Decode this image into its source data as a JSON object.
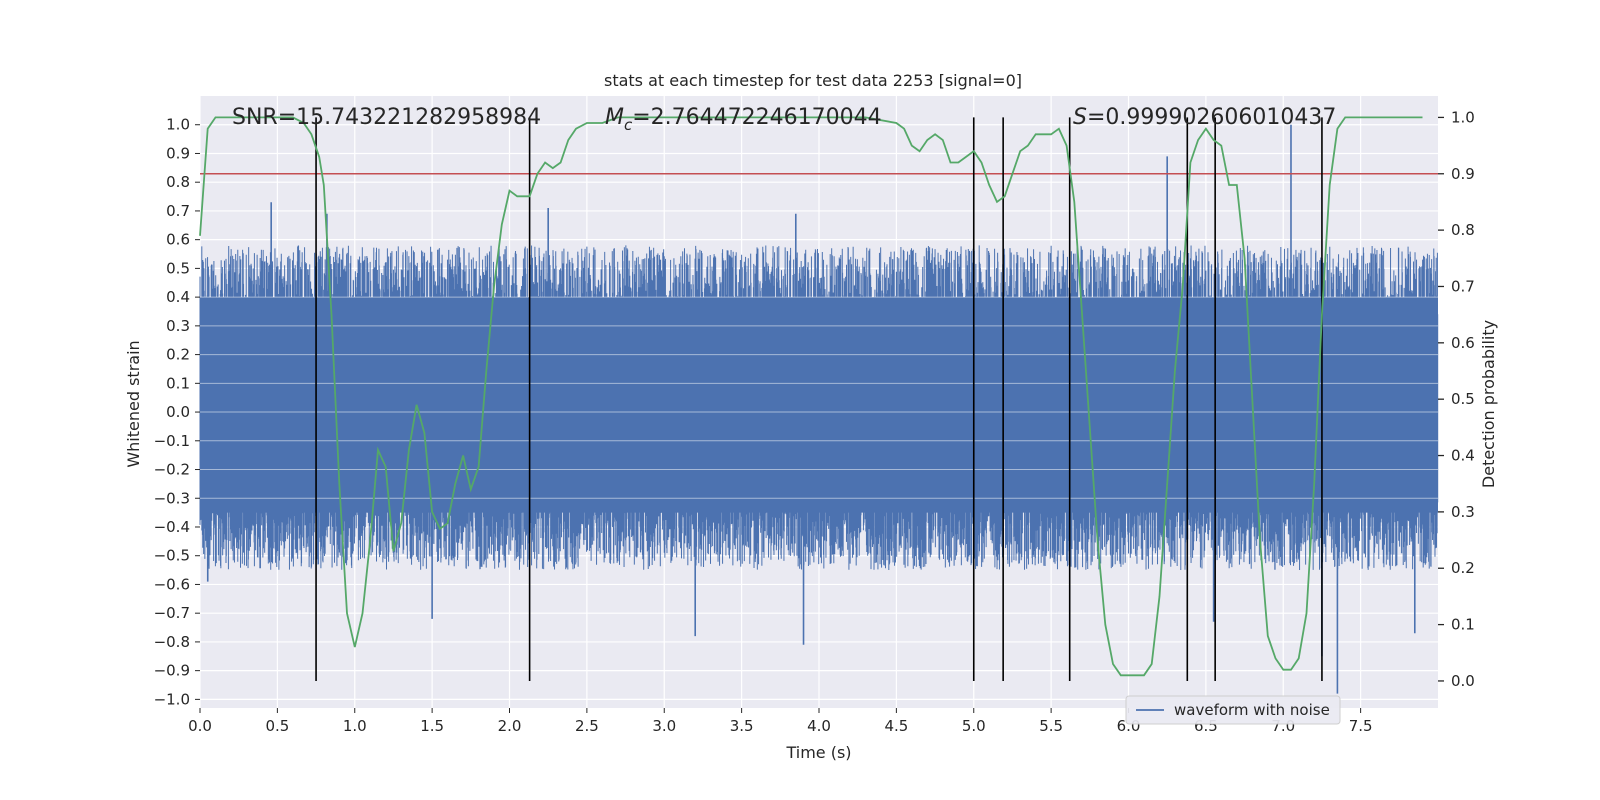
{
  "chart_data": {
    "type": "line",
    "title": "stats at each timestep for test data 2253 [signal=0]",
    "xlabel": "Time (s)",
    "ylabel": "Whitened strain",
    "y2label": "Detection probability",
    "xlim": [
      0.0,
      8.0
    ],
    "ylim": [
      -1.03,
      1.1
    ],
    "y2lim": [
      -0.048,
      1.038
    ],
    "x_ticks": [
      0.0,
      0.5,
      1.0,
      1.5,
      2.0,
      2.5,
      3.0,
      3.5,
      4.0,
      4.5,
      5.0,
      5.5,
      6.0,
      6.5,
      7.0,
      7.5
    ],
    "y_ticks": [
      1.0,
      0.9,
      0.8,
      0.7,
      0.6,
      0.5,
      0.4,
      0.3,
      0.2,
      0.1,
      0.0,
      -0.1,
      -0.2,
      -0.3,
      -0.4,
      -0.5,
      -0.6,
      -0.7,
      -0.8,
      -0.9,
      -1.0
    ],
    "y2_ticks": [
      1.0,
      0.9,
      0.8,
      0.7,
      0.6,
      0.5,
      0.4,
      0.3,
      0.2,
      0.1,
      0.0
    ],
    "grid": true,
    "legend": {
      "position": "lower-right",
      "entries": [
        "waveform with noise"
      ]
    },
    "annotations": [
      {
        "prefix": "SNR=",
        "value": "15.743221282958984"
      },
      {
        "prefix": "M",
        "sub": "c",
        "value": "=2.764472246170044"
      },
      {
        "prefix": "S",
        "value": "=0.999902606010437"
      }
    ],
    "threshold": {
      "axis": "right",
      "value": 0.9,
      "color": "#c44e52"
    },
    "vertical_lines": {
      "x": [
        0.75,
        2.13,
        5.0,
        5.19,
        5.62,
        6.38,
        6.56,
        7.25
      ],
      "ymin": 0.0,
      "ymax": 1.0,
      "color": "#000000"
    },
    "series": [
      {
        "name": "waveform with noise",
        "axis": "left",
        "color": "#4c72b0",
        "sample_rate_hz": 512,
        "envelope": {
          "positive_typical": [
            0.3,
            0.58
          ],
          "negative_typical": [
            -0.3,
            -0.55
          ],
          "core": [
            -0.35,
            0.4
          ]
        },
        "spikes": [
          [
            0.46,
            0.73
          ],
          [
            0.82,
            0.69
          ],
          [
            2.25,
            0.71
          ],
          [
            3.85,
            0.69
          ],
          [
            6.25,
            0.89
          ],
          [
            7.05,
            1.0
          ],
          [
            3.9,
            -0.81
          ],
          [
            3.2,
            -0.78
          ],
          [
            6.55,
            -0.73
          ],
          [
            7.35,
            -0.98
          ],
          [
            7.25,
            -0.85
          ],
          [
            1.5,
            -0.72
          ],
          [
            0.05,
            -0.59
          ],
          [
            7.85,
            -0.77
          ]
        ]
      },
      {
        "name": "",
        "axis": "right",
        "color": "#55a868",
        "x": [
          0.0,
          0.05,
          0.1,
          0.2,
          0.3,
          0.4,
          0.5,
          0.6,
          0.67,
          0.72,
          0.77,
          0.8,
          0.85,
          0.9,
          0.95,
          1.0,
          1.05,
          1.1,
          1.15,
          1.2,
          1.25,
          1.3,
          1.35,
          1.4,
          1.45,
          1.5,
          1.55,
          1.6,
          1.65,
          1.7,
          1.75,
          1.8,
          1.85,
          1.9,
          1.95,
          2.0,
          2.05,
          2.1,
          2.13,
          2.18,
          2.23,
          2.28,
          2.33,
          2.38,
          2.43,
          2.5,
          2.6,
          2.7,
          3.0,
          3.5,
          4.0,
          4.3,
          4.5,
          4.55,
          4.6,
          4.65,
          4.7,
          4.75,
          4.8,
          4.85,
          4.9,
          4.95,
          5.0,
          5.05,
          5.1,
          5.15,
          5.2,
          5.25,
          5.3,
          5.35,
          5.4,
          5.45,
          5.5,
          5.55,
          5.6,
          5.65,
          5.7,
          5.75,
          5.8,
          5.85,
          5.9,
          5.95,
          6.0,
          6.05,
          6.1,
          6.15,
          6.2,
          6.25,
          6.3,
          6.35,
          6.4,
          6.45,
          6.5,
          6.55,
          6.6,
          6.65,
          6.7,
          6.75,
          6.8,
          6.85,
          6.9,
          6.95,
          7.0,
          7.05,
          7.1,
          7.15,
          7.2,
          7.25,
          7.3,
          7.35,
          7.4,
          7.5,
          7.6,
          7.7,
          7.8,
          7.9
        ],
        "y": [
          0.79,
          0.98,
          1.0,
          1.0,
          1.0,
          1.0,
          1.0,
          1.0,
          0.99,
          0.97,
          0.93,
          0.88,
          0.65,
          0.35,
          0.12,
          0.06,
          0.12,
          0.25,
          0.41,
          0.38,
          0.23,
          0.28,
          0.41,
          0.49,
          0.44,
          0.3,
          0.27,
          0.28,
          0.35,
          0.4,
          0.34,
          0.38,
          0.55,
          0.7,
          0.81,
          0.87,
          0.86,
          0.86,
          0.86,
          0.9,
          0.92,
          0.91,
          0.92,
          0.96,
          0.98,
          0.99,
          0.99,
          1.0,
          1.0,
          1.0,
          1.0,
          1.0,
          0.99,
          0.98,
          0.95,
          0.94,
          0.96,
          0.97,
          0.96,
          0.92,
          0.92,
          0.93,
          0.94,
          0.92,
          0.88,
          0.85,
          0.86,
          0.9,
          0.94,
          0.95,
          0.97,
          0.97,
          0.97,
          0.98,
          0.95,
          0.85,
          0.65,
          0.45,
          0.25,
          0.1,
          0.03,
          0.01,
          0.01,
          0.01,
          0.01,
          0.03,
          0.15,
          0.35,
          0.55,
          0.7,
          0.92,
          0.96,
          0.98,
          0.96,
          0.95,
          0.88,
          0.88,
          0.75,
          0.5,
          0.25,
          0.08,
          0.04,
          0.02,
          0.02,
          0.04,
          0.12,
          0.35,
          0.65,
          0.88,
          0.98,
          1.0,
          1.0,
          1.0,
          1.0,
          1.0,
          1.0
        ]
      }
    ]
  }
}
